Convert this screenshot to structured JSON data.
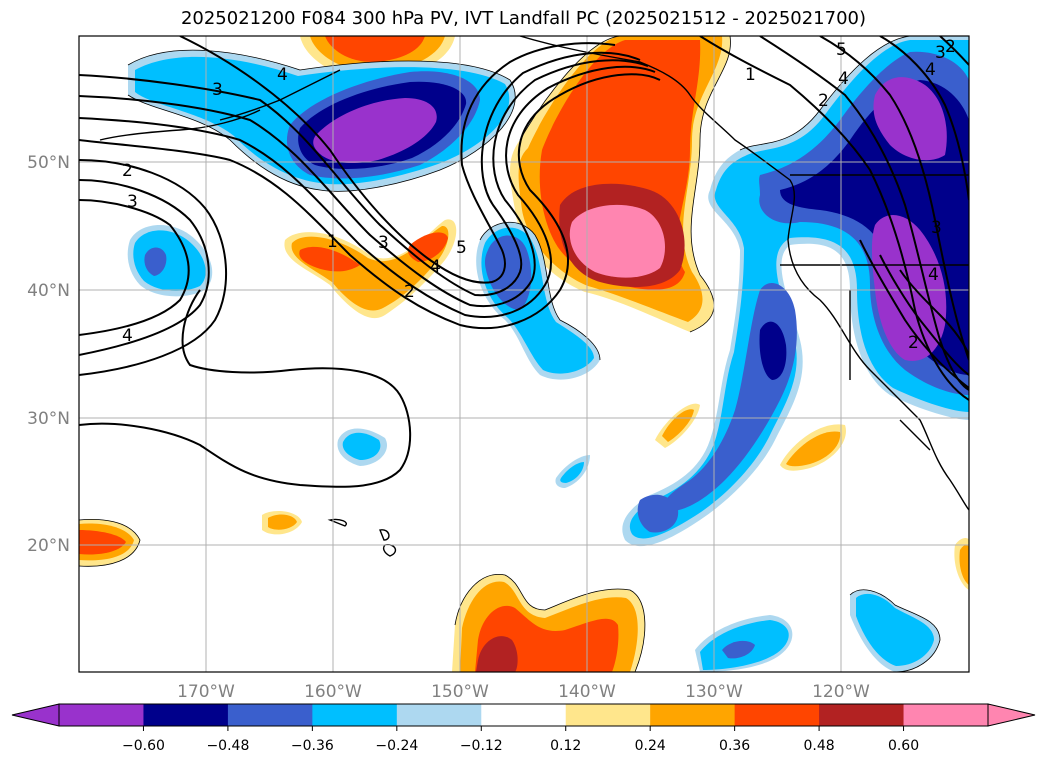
{
  "title": "2025021200 F084 300 hPa PV, IVT Landfall PC (2025021512 - 2025021700)",
  "lon_labels": [
    "170°W",
    "160°W",
    "150°W",
    "140°W",
    "130°W",
    "120°W"
  ],
  "lat_labels": [
    "50°N",
    "40°N",
    "30°N",
    "20°N"
  ],
  "colorbar": {
    "ticks": [
      "−0.60",
      "−0.48",
      "−0.36",
      "−0.24",
      "−0.12",
      "0.12",
      "0.24",
      "0.36",
      "0.48",
      "0.60"
    ],
    "colors": [
      "#9932cc",
      "#00008b",
      "#3a5fcd",
      "#00bfff",
      "#add8f0",
      "#ffffff",
      "#ffe68c",
      "#ffa500",
      "#ff4500",
      "#b22222",
      "#ff85b0",
      "#ff85b0"
    ]
  },
  "contour_labels": [
    "4",
    "3",
    "2",
    "3",
    "4",
    "1",
    "3",
    "5",
    "4",
    "2",
    "1",
    "2",
    "4",
    "5",
    "3",
    "2",
    "4",
    "4",
    "2",
    "3"
  ],
  "colors": {
    "pos_1": "#ffe68c",
    "pos_2": "#ffa500",
    "pos_3": "#ff4500",
    "pos_4": "#b22222",
    "pos_5": "#ff85b0",
    "neg_1": "#add8f0",
    "neg_2": "#00bfff",
    "neg_3": "#3a5fcd",
    "neg_4": "#00008b",
    "neg_5": "#9932cc",
    "grid": "#b0b0b0",
    "tick_labels": "#808080"
  }
}
